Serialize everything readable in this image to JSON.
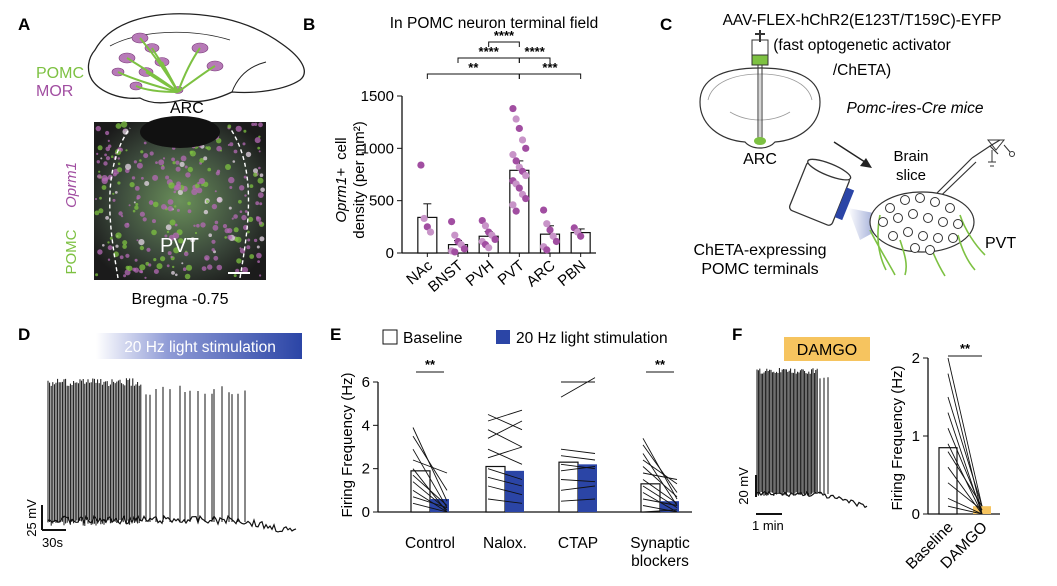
{
  "panels": {
    "A": {
      "letter": "A",
      "legend_pomc": "POMC",
      "legend_mor": "MOR",
      "region_label": "ARC",
      "img_label_oprm1": "Oprm1",
      "img_label_pomc": "POMC",
      "img_label_pvt": "PVT",
      "bregma": "Bregma -0.75"
    },
    "B": {
      "letter": "B"
    },
    "C": {
      "letter": "C",
      "virus_line1": "AAV-FLEX-hChR2(E123T/T159C)-EYFP",
      "virus_line2": "(fast optogenetic activator",
      "virus_line3": "/ChETA)",
      "mice": "Pomc-ires-Cre mice",
      "arc": "ARC",
      "brain_slice_1": "Brain",
      "brain_slice_2": "slice",
      "cheta_1": "ChETA-expressing",
      "cheta_2": "POMC terminals",
      "pvt": "PVT"
    },
    "D": {
      "letter": "D",
      "stim_label": "20 Hz light stimulation",
      "scale_mv": "25 mV",
      "scale_s": "30s"
    },
    "E": {
      "letter": "E"
    },
    "F": {
      "letter": "F",
      "drug_label": "DAMGO",
      "scale_mv": "20 mV",
      "scale_min": "1 min"
    }
  },
  "colors": {
    "pomc_green": "#7dc142",
    "mor_purple": "#a14ea1",
    "light_purple": "#c894c8",
    "stim_blue": "#2b45a6",
    "damgo_orange": "#f6c45f"
  },
  "chart_data": [
    {
      "id": "B",
      "type": "bar",
      "title": "In POMC neuron terminal field",
      "ylabel_italic": "Oprm1+",
      "ylabel_rest": "cell",
      "ylabel_line2": "density (per mm²)",
      "ylim": [
        0,
        1500
      ],
      "yticks": [
        "0",
        "500",
        "1000",
        "1500"
      ],
      "categories": [
        "NAc",
        "BNST",
        "PVH",
        "PVT",
        "ARC",
        "PBN"
      ],
      "values": [
        340,
        80,
        160,
        790,
        180,
        195
      ],
      "errors": [
        130,
        40,
        45,
        90,
        80,
        35
      ],
      "points": [
        [
          840,
          330,
          250,
          200
        ],
        [
          300,
          170,
          110,
          80,
          40,
          20,
          10
        ],
        [
          310,
          260,
          200,
          170,
          130,
          110,
          80,
          50
        ],
        [
          1380,
          1280,
          1190,
          1080,
          1000,
          940,
          880,
          820,
          780,
          740,
          690,
          660,
          620,
          560,
          520,
          460,
          400
        ],
        [
          410,
          280,
          220,
          160,
          110,
          60,
          30
        ],
        [
          240,
          200,
          160
        ]
      ],
      "significance": [
        {
          "from": 3,
          "to": 2,
          "label": "****"
        },
        {
          "from": 3,
          "to": 1,
          "label": "****"
        },
        {
          "from": 3,
          "to": 4,
          "label": "****"
        },
        {
          "from": 3,
          "to": 0,
          "label": "**"
        },
        {
          "from": 3,
          "to": 5,
          "label": "***"
        }
      ]
    },
    {
      "id": "E",
      "type": "bar",
      "legend": [
        "Baseline",
        "20 Hz light stimulation"
      ],
      "ylabel": "Firing Frequency (Hz)",
      "ylim": [
        0,
        6
      ],
      "yticks": [
        "0",
        "2",
        "4",
        "6"
      ],
      "categories": [
        "Control",
        "Nalox.",
        "CTAP",
        "Synaptic blockers"
      ],
      "series": [
        {
          "name": "Baseline",
          "values": [
            1.9,
            2.1,
            2.3,
            1.3
          ]
        },
        {
          "name": "20 Hz light stimulation",
          "values": [
            0.6,
            1.9,
            2.2,
            0.5
          ]
        }
      ],
      "pairs": [
        [
          [
            3.9,
            0.5
          ],
          [
            3.5,
            1.0
          ],
          [
            2.9,
            0.2
          ],
          [
            2.4,
            1.8
          ],
          [
            2.0,
            0.0
          ],
          [
            1.7,
            0.3
          ],
          [
            1.4,
            0.1
          ],
          [
            1.0,
            0.0
          ],
          [
            0.7,
            0.2
          ],
          [
            0.4,
            0.0
          ]
        ],
        [
          [
            4.5,
            3.8
          ],
          [
            4.2,
            4.7
          ],
          [
            3.8,
            3.0
          ],
          [
            3.4,
            4.2
          ],
          [
            2.9,
            2.2
          ],
          [
            2.5,
            3.0
          ],
          [
            2.0,
            1.5
          ],
          [
            1.6,
            1.2
          ],
          [
            1.2,
            0.8
          ],
          [
            0.6,
            0.4
          ]
        ],
        [
          [
            6.0,
            6.0
          ],
          [
            5.3,
            6.2
          ],
          [
            2.9,
            2.7
          ],
          [
            2.6,
            2.4
          ],
          [
            2.2,
            2.0
          ],
          [
            1.9,
            2.1
          ],
          [
            1.5,
            1.4
          ],
          [
            1.0,
            1.2
          ],
          [
            0.5,
            0.6
          ]
        ],
        [
          [
            3.4,
            0.6
          ],
          [
            3.1,
            0.9
          ],
          [
            2.7,
            0.3
          ],
          [
            2.4,
            1.3
          ],
          [
            2.1,
            0.7
          ],
          [
            1.8,
            1.5
          ],
          [
            1.5,
            0.4
          ],
          [
            1.2,
            0.2
          ],
          [
            0.9,
            0.0
          ],
          [
            0.6,
            0.3
          ],
          [
            0.3,
            0.0
          ],
          [
            0.0,
            0.1
          ]
        ]
      ],
      "significance": [
        {
          "group": 0,
          "label": "**"
        },
        {
          "group": 3,
          "label": "**"
        }
      ]
    },
    {
      "id": "F",
      "type": "bar",
      "ylabel": "Firing Frequency (Hz)",
      "ylim": [
        0,
        2
      ],
      "yticks": [
        "0",
        "1",
        "2"
      ],
      "categories": [
        "Baseline",
        "DAMGO"
      ],
      "values": [
        0.85,
        0.1
      ],
      "pairs": [
        [
          2.0,
          0.1
        ],
        [
          1.8,
          0.0
        ],
        [
          1.5,
          0.1
        ],
        [
          1.3,
          0.0
        ],
        [
          1.1,
          0.05
        ],
        [
          0.9,
          0.0
        ],
        [
          0.8,
          0.1
        ],
        [
          0.6,
          0.0
        ],
        [
          0.4,
          0.05
        ],
        [
          0.2,
          0.0
        ],
        [
          0.1,
          0.0
        ]
      ],
      "significance": [
        {
          "label": "**"
        }
      ]
    }
  ]
}
